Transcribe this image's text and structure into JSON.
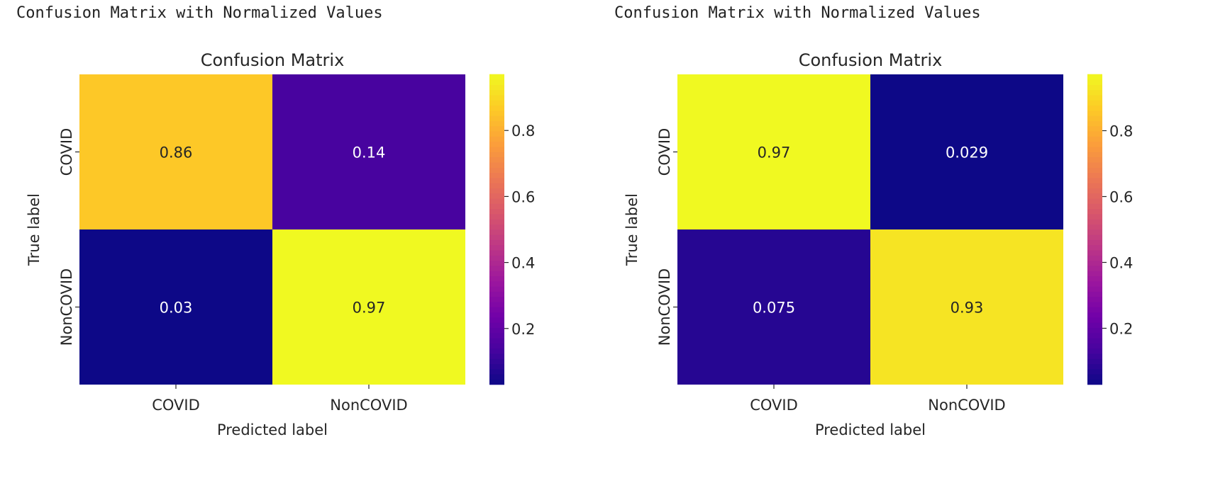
{
  "captions": [
    "Confusion Matrix with Normalized Values",
    "Confusion Matrix with Normalized Values"
  ],
  "colormap": {
    "name": "plasma",
    "stops": [
      "#0d0887",
      "#46039f",
      "#7201a8",
      "#9c179e",
      "#bd3786",
      "#d8576b",
      "#ed7953",
      "#fb9f3a",
      "#fdca26",
      "#f0f921"
    ]
  },
  "chart_data": [
    {
      "type": "heatmap",
      "title": "Confusion Matrix",
      "xlabel": "Predicted label",
      "ylabel": "True label",
      "x_categories": [
        "COVID",
        "NonCOVID"
      ],
      "y_categories": [
        "COVID",
        "NonCOVID"
      ],
      "values": [
        [
          0.86,
          0.14
        ],
        [
          0.03,
          0.97
        ]
      ],
      "cell_labels": [
        [
          "0.86",
          "0.14"
        ],
        [
          "0.03",
          "0.97"
        ]
      ],
      "colorbar": {
        "range": [
          0.03,
          0.97
        ],
        "ticks": [
          0.2,
          0.4,
          0.6,
          0.8
        ],
        "tick_labels": [
          "0.2",
          "0.4",
          "0.6",
          "0.8"
        ]
      }
    },
    {
      "type": "heatmap",
      "title": "Confusion Matrix",
      "xlabel": "Predicted label",
      "ylabel": "True label",
      "x_categories": [
        "COVID",
        "NonCOVID"
      ],
      "y_categories": [
        "COVID",
        "NonCOVID"
      ],
      "values": [
        [
          0.971,
          0.029
        ],
        [
          0.075,
          0.925
        ]
      ],
      "cell_labels": [
        [
          "0.97",
          "0.029"
        ],
        [
          "0.075",
          "0.93"
        ]
      ],
      "colorbar": {
        "range": [
          0.029,
          0.971
        ],
        "ticks": [
          0.2,
          0.4,
          0.6,
          0.8
        ],
        "tick_labels": [
          "0.2",
          "0.4",
          "0.6",
          "0.8"
        ]
      }
    }
  ]
}
